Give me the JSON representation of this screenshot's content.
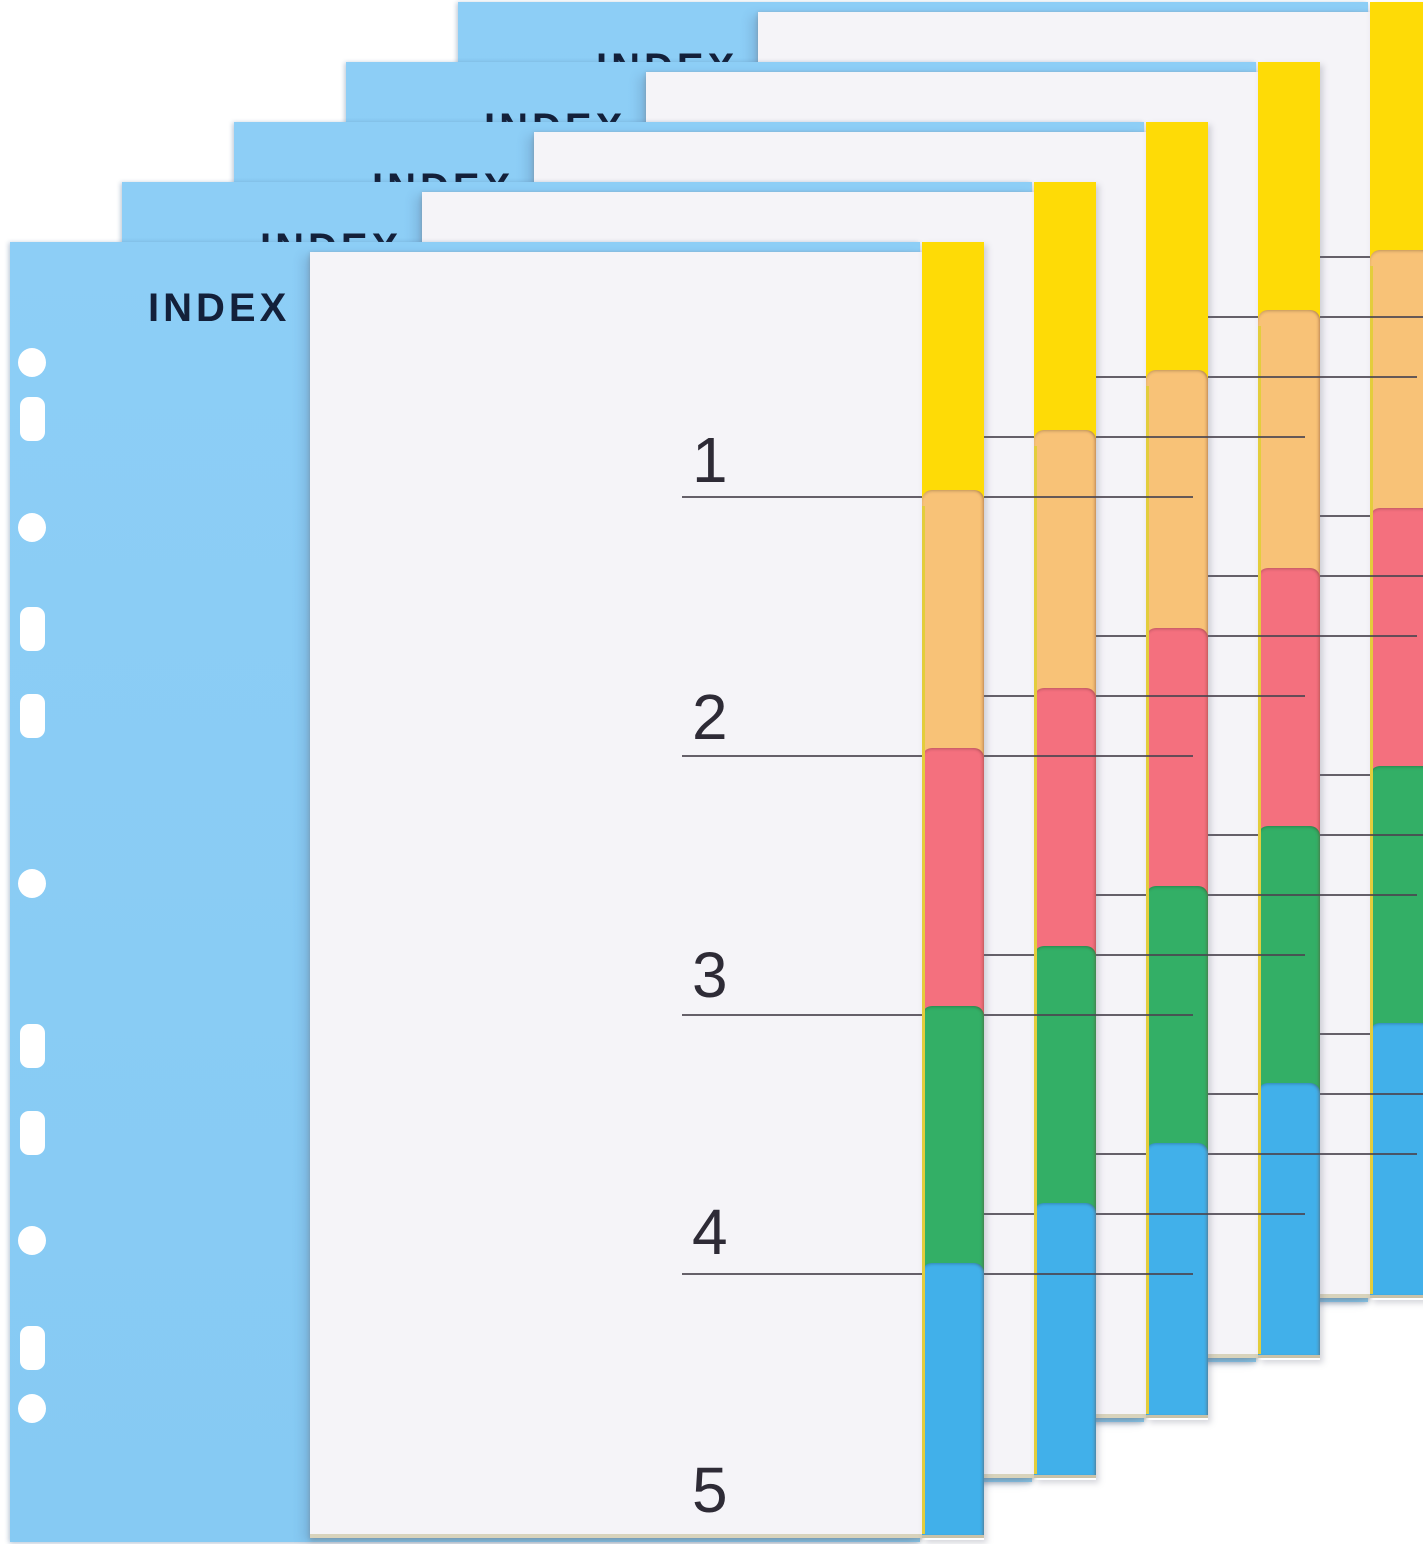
{
  "image_type": "product-photo",
  "product": {
    "name": "5-tab colored index dividers, 5 sets fanned",
    "cover_title": "INDEX",
    "set_count": 5,
    "row_labels": [
      "1",
      "2",
      "3",
      "4",
      "5"
    ],
    "tabs": [
      {
        "name": "tab-1-yellow",
        "color": "#FEDB06"
      },
      {
        "name": "tab-2-orange",
        "color": "#F8C277"
      },
      {
        "name": "tab-3-red",
        "color": "#F4707E"
      },
      {
        "name": "tab-4-green",
        "color": "#33AF66"
      },
      {
        "name": "tab-5-blue",
        "color": "#41B0EA"
      }
    ],
    "hole_shapes": [
      "round",
      "rect",
      "round",
      "rect",
      "rect",
      "round",
      "rect",
      "rect",
      "round",
      "rect",
      "round"
    ]
  },
  "colors": {
    "background": "#FFFFFF",
    "cover_blue": "#8DCEF6",
    "page_white": "#F5F4F8",
    "title_navy": "#13203A",
    "number_ink": "#2E2B36",
    "rule_line": "#4B4550",
    "sheet_edge_yellow": "#E3CD3C",
    "page_edge_beige": "#D8D3BC"
  }
}
